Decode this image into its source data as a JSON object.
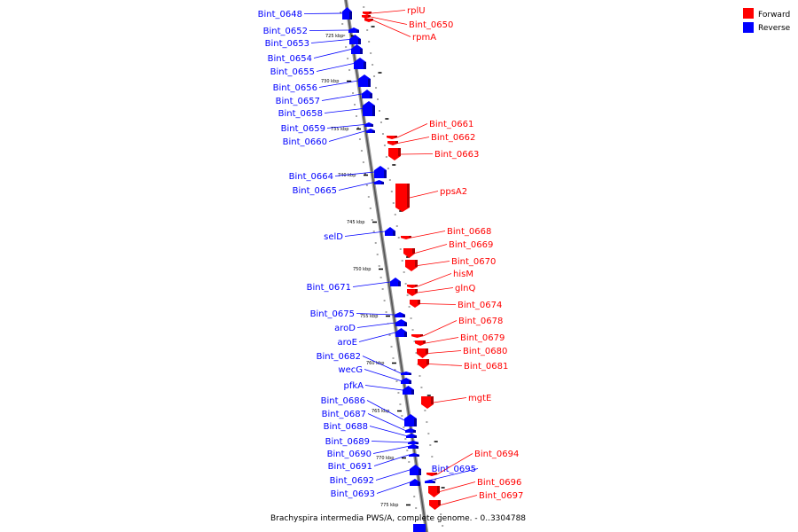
{
  "caption": "Brachyspira intermedia PWS/A, complete genome. - 0..3304788",
  "legend": [
    {
      "label": "Forward",
      "color": "#ff0000"
    },
    {
      "label": "Reverse",
      "color": "#0000ff"
    }
  ],
  "ticks": [
    "725 kbp",
    "730 kbp",
    "735 kbp",
    "740 kbp",
    "745 kbp",
    "750 kbp",
    "755 kbp",
    "760 kbp",
    "765 kbp",
    "770 kbp",
    "775 kbp"
  ],
  "genes": [
    {
      "name": "Bint_0648",
      "strand": "reverse"
    },
    {
      "name": "rplU",
      "strand": "forward"
    },
    {
      "name": "Bint_0650",
      "strand": "forward"
    },
    {
      "name": "rpmA",
      "strand": "forward"
    },
    {
      "name": "Bint_0652",
      "strand": "reverse"
    },
    {
      "name": "Bint_0653",
      "strand": "reverse"
    },
    {
      "name": "Bint_0654",
      "strand": "reverse"
    },
    {
      "name": "Bint_0655",
      "strand": "reverse"
    },
    {
      "name": "Bint_0656",
      "strand": "reverse"
    },
    {
      "name": "Bint_0657",
      "strand": "reverse"
    },
    {
      "name": "Bint_0658",
      "strand": "reverse"
    },
    {
      "name": "Bint_0659",
      "strand": "reverse"
    },
    {
      "name": "Bint_0660",
      "strand": "reverse"
    },
    {
      "name": "Bint_0661",
      "strand": "forward"
    },
    {
      "name": "Bint_0662",
      "strand": "forward"
    },
    {
      "name": "Bint_0663",
      "strand": "forward"
    },
    {
      "name": "Bint_0664",
      "strand": "reverse"
    },
    {
      "name": "Bint_0665",
      "strand": "reverse"
    },
    {
      "name": "ppsA2",
      "strand": "forward"
    },
    {
      "name": "selD",
      "strand": "reverse"
    },
    {
      "name": "Bint_0668",
      "strand": "forward"
    },
    {
      "name": "Bint_0669",
      "strand": "forward"
    },
    {
      "name": "Bint_0670",
      "strand": "forward"
    },
    {
      "name": "hisM",
      "strand": "forward"
    },
    {
      "name": "Bint_0671",
      "strand": "reverse"
    },
    {
      "name": "glnQ",
      "strand": "forward"
    },
    {
      "name": "Bint_0674",
      "strand": "forward"
    },
    {
      "name": "Bint_0675",
      "strand": "reverse"
    },
    {
      "name": "aroD",
      "strand": "reverse"
    },
    {
      "name": "Bint_0678",
      "strand": "forward"
    },
    {
      "name": "aroE",
      "strand": "reverse"
    },
    {
      "name": "Bint_0679",
      "strand": "forward"
    },
    {
      "name": "Bint_0680",
      "strand": "forward"
    },
    {
      "name": "Bint_0682",
      "strand": "reverse"
    },
    {
      "name": "Bint_0681",
      "strand": "forward"
    },
    {
      "name": "wecG",
      "strand": "reverse"
    },
    {
      "name": "pfkA",
      "strand": "reverse"
    },
    {
      "name": "mgtE",
      "strand": "forward"
    },
    {
      "name": "Bint_0686",
      "strand": "reverse"
    },
    {
      "name": "Bint_0687",
      "strand": "reverse"
    },
    {
      "name": "Bint_0688",
      "strand": "reverse"
    },
    {
      "name": "Bint_0689",
      "strand": "reverse"
    },
    {
      "name": "Bint_0690",
      "strand": "reverse"
    },
    {
      "name": "Bint_0694",
      "strand": "forward"
    },
    {
      "name": "Bint_0691",
      "strand": "reverse"
    },
    {
      "name": "Bint_0695",
      "strand": "reverse"
    },
    {
      "name": "Bint_0692",
      "strand": "reverse"
    },
    {
      "name": "Bint_0696",
      "strand": "forward"
    },
    {
      "name": "Bint_0693",
      "strand": "reverse"
    },
    {
      "name": "Bint_0697",
      "strand": "forward"
    }
  ]
}
